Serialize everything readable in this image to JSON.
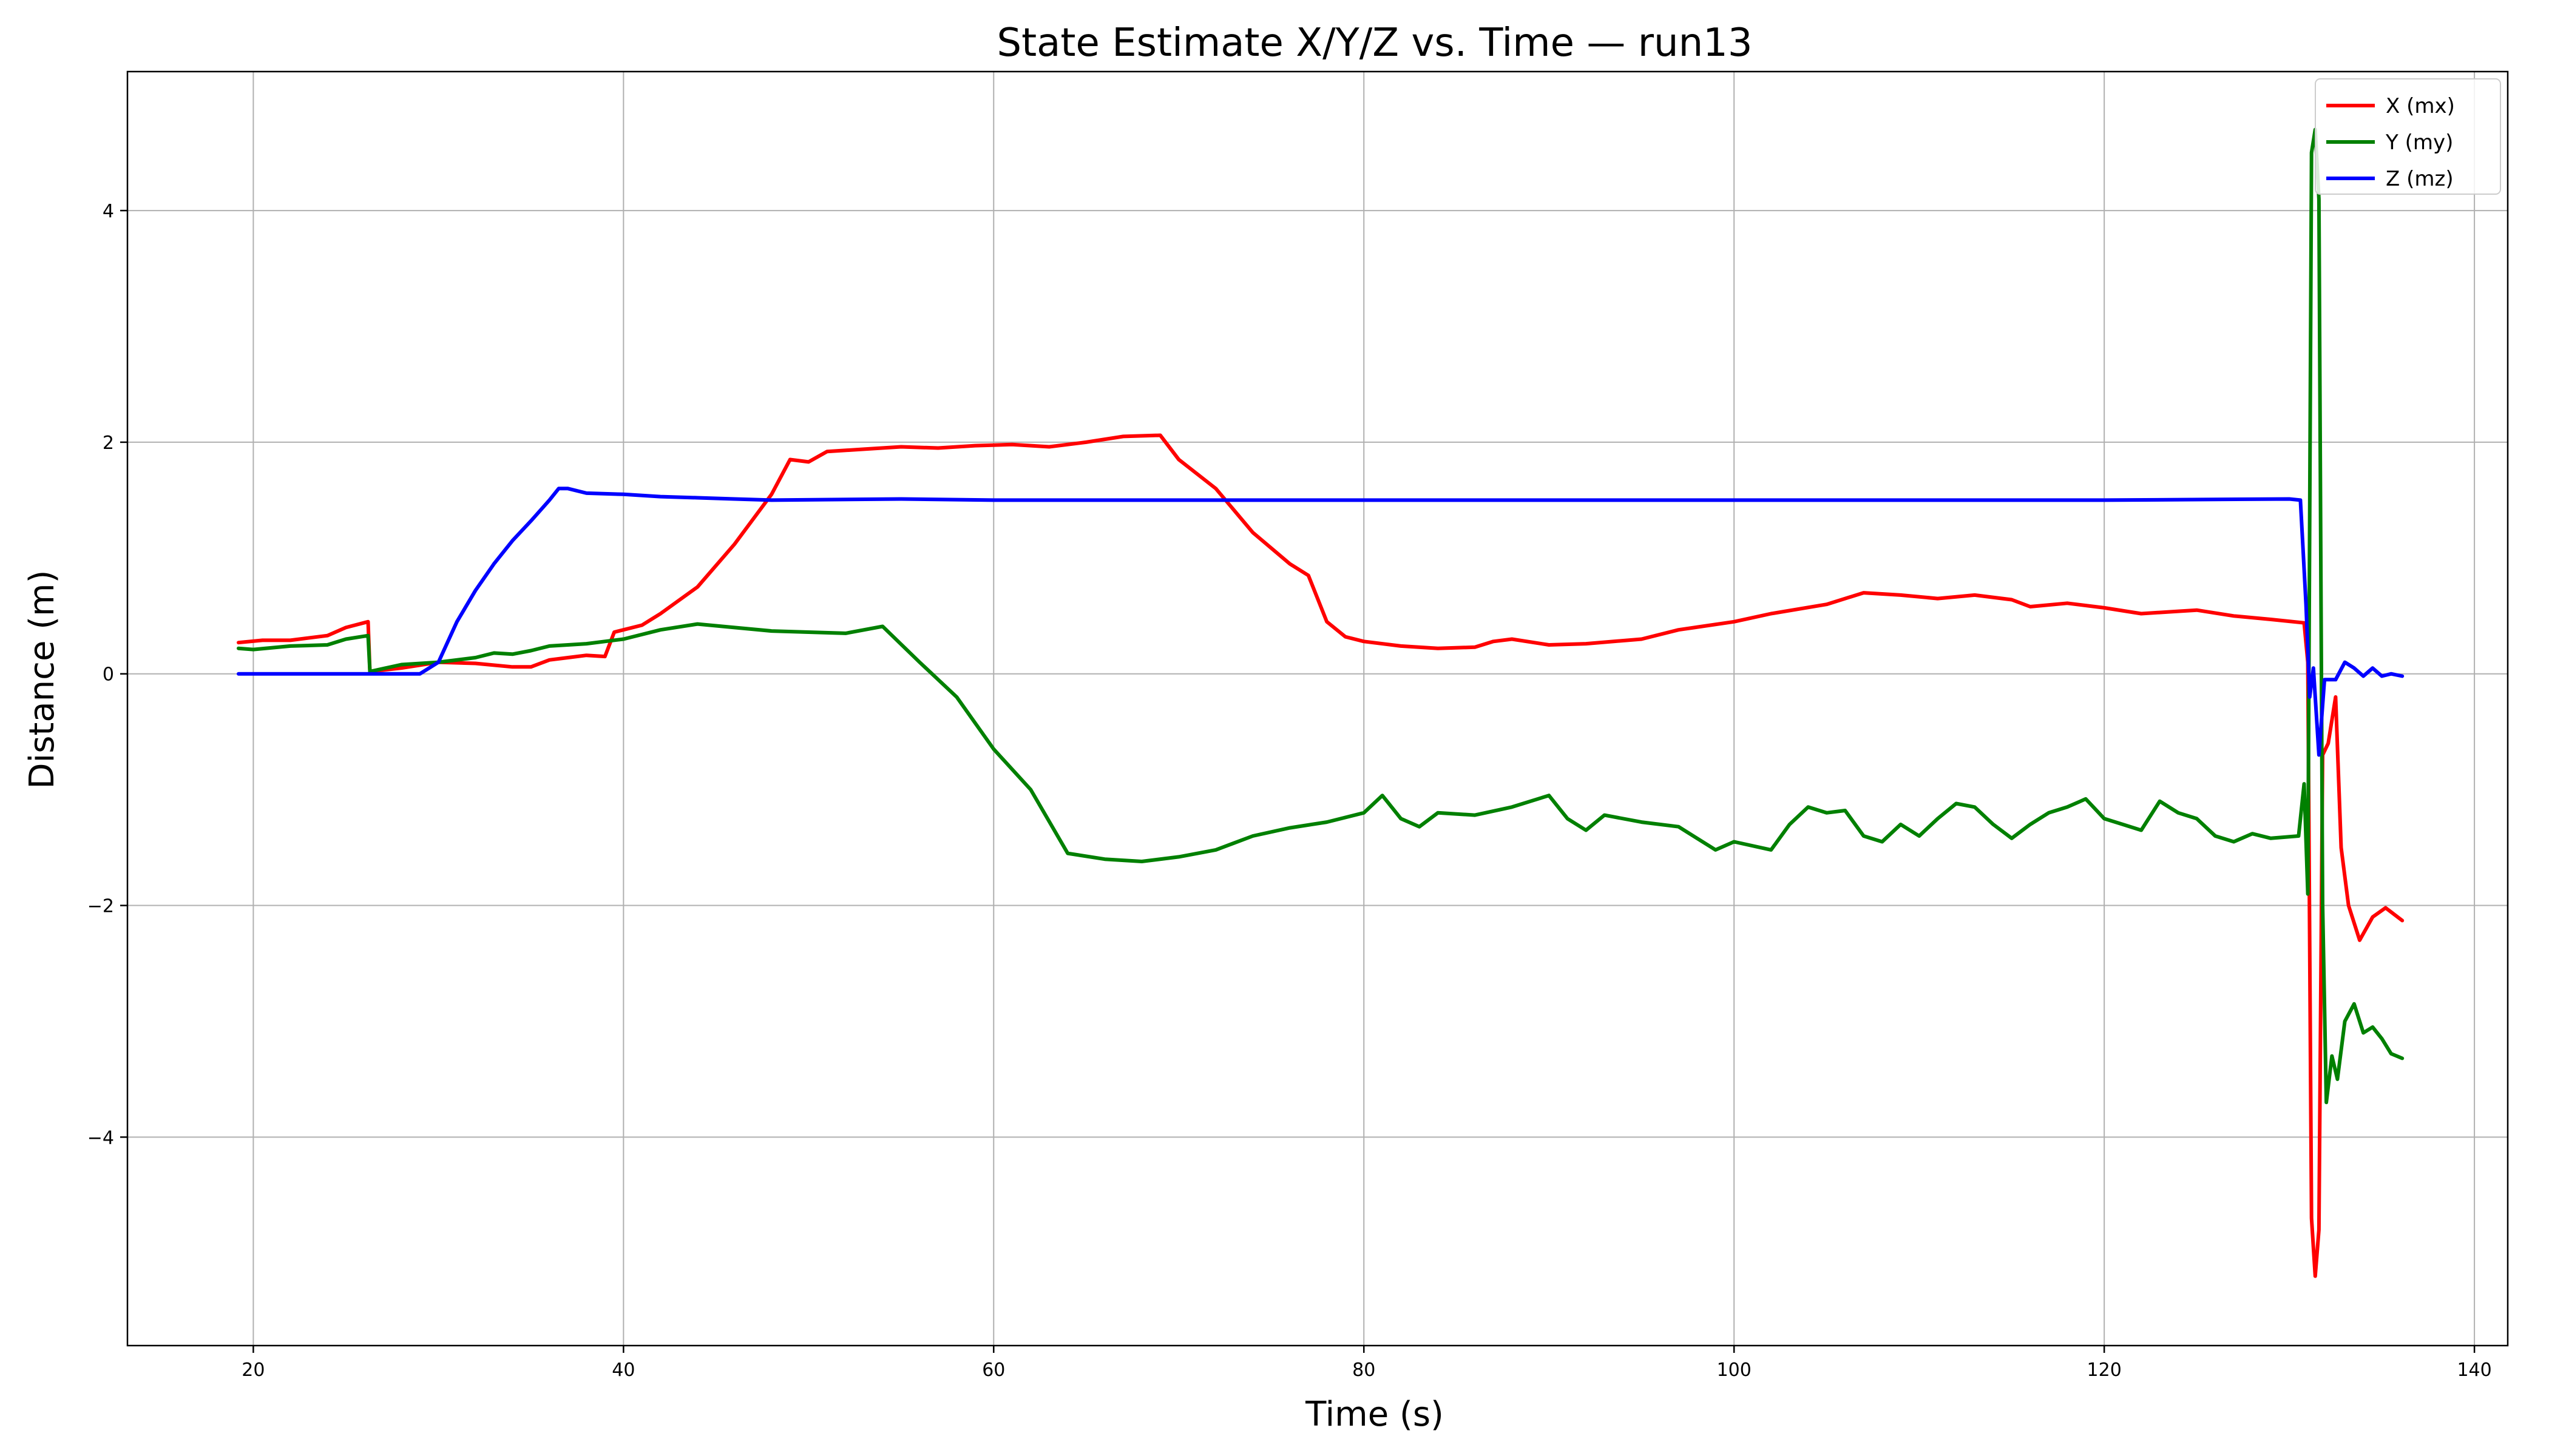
{
  "chart_data": {
    "type": "line",
    "title": "State Estimate X/Y/Z vs. Time — run13",
    "xlabel": "Time (s)",
    "ylabel": "Distance (m)",
    "xlim": [
      13.2,
      141.8
    ],
    "ylim": [
      -5.8,
      5.2
    ],
    "x_ticks": [
      20,
      40,
      60,
      80,
      100,
      120,
      140
    ],
    "y_ticks": [
      -4,
      -2,
      0,
      2,
      4
    ],
    "grid": true,
    "legend_position": "top-right",
    "series": [
      {
        "name": "X (mx)",
        "color": "#ff0000",
        "points": [
          [
            19.2,
            0.27
          ],
          [
            20.5,
            0.29
          ],
          [
            22,
            0.29
          ],
          [
            24,
            0.33
          ],
          [
            25,
            0.4
          ],
          [
            26.2,
            0.45
          ],
          [
            26.3,
            0.02
          ],
          [
            28,
            0.05
          ],
          [
            30,
            0.1
          ],
          [
            32,
            0.09
          ],
          [
            34,
            0.06
          ],
          [
            35,
            0.06
          ],
          [
            36,
            0.12
          ],
          [
            37,
            0.14
          ],
          [
            38,
            0.16
          ],
          [
            39,
            0.15
          ],
          [
            39.5,
            0.36
          ],
          [
            41,
            0.42
          ],
          [
            42,
            0.52
          ],
          [
            44,
            0.75
          ],
          [
            46,
            1.12
          ],
          [
            48,
            1.55
          ],
          [
            49,
            1.85
          ],
          [
            50,
            1.83
          ],
          [
            51,
            1.92
          ],
          [
            53,
            1.94
          ],
          [
            55,
            1.96
          ],
          [
            57,
            1.95
          ],
          [
            59,
            1.97
          ],
          [
            61,
            1.98
          ],
          [
            63,
            1.96
          ],
          [
            65,
            2.0
          ],
          [
            67,
            2.05
          ],
          [
            69,
            2.06
          ],
          [
            70,
            1.85
          ],
          [
            72,
            1.6
          ],
          [
            74,
            1.22
          ],
          [
            76,
            0.95
          ],
          [
            77,
            0.85
          ],
          [
            78,
            0.45
          ],
          [
            79,
            0.32
          ],
          [
            80,
            0.28
          ],
          [
            82,
            0.24
          ],
          [
            84,
            0.22
          ],
          [
            86,
            0.23
          ],
          [
            87,
            0.28
          ],
          [
            88,
            0.3
          ],
          [
            90,
            0.25
          ],
          [
            92,
            0.26
          ],
          [
            95,
            0.3
          ],
          [
            97,
            0.38
          ],
          [
            100,
            0.45
          ],
          [
            102,
            0.52
          ],
          [
            105,
            0.6
          ],
          [
            107,
            0.7
          ],
          [
            109,
            0.68
          ],
          [
            111,
            0.65
          ],
          [
            113,
            0.68
          ],
          [
            115,
            0.64
          ],
          [
            116,
            0.58
          ],
          [
            118,
            0.61
          ],
          [
            120,
            0.57
          ],
          [
            122,
            0.52
          ],
          [
            124,
            0.54
          ],
          [
            125,
            0.55
          ],
          [
            127,
            0.5
          ],
          [
            129,
            0.47
          ],
          [
            130.8,
            0.44
          ],
          [
            131,
            0.1
          ],
          [
            131.2,
            -4.7
          ],
          [
            131.4,
            -5.2
          ],
          [
            131.6,
            -4.8
          ],
          [
            131.8,
            -0.7
          ],
          [
            132.1,
            -0.6
          ],
          [
            132.5,
            -0.2
          ],
          [
            132.8,
            -1.5
          ],
          [
            133.2,
            -2.0
          ],
          [
            133.8,
            -2.3
          ],
          [
            134.5,
            -2.1
          ],
          [
            135.2,
            -2.02
          ],
          [
            136.1,
            -2.13
          ]
        ]
      },
      {
        "name": "Y (my)",
        "color": "#008000",
        "points": [
          [
            19.2,
            0.22
          ],
          [
            20,
            0.21
          ],
          [
            22,
            0.24
          ],
          [
            24,
            0.25
          ],
          [
            25,
            0.3
          ],
          [
            26.2,
            0.33
          ],
          [
            26.3,
            0.02
          ],
          [
            28,
            0.08
          ],
          [
            30,
            0.1
          ],
          [
            32,
            0.14
          ],
          [
            33,
            0.18
          ],
          [
            34,
            0.17
          ],
          [
            35,
            0.2
          ],
          [
            36,
            0.24
          ],
          [
            38,
            0.26
          ],
          [
            40,
            0.3
          ],
          [
            42,
            0.38
          ],
          [
            44,
            0.43
          ],
          [
            46,
            0.4
          ],
          [
            48,
            0.37
          ],
          [
            50,
            0.36
          ],
          [
            52,
            0.35
          ],
          [
            54,
            0.41
          ],
          [
            56,
            0.1
          ],
          [
            58,
            -0.2
          ],
          [
            60,
            -0.65
          ],
          [
            62,
            -1.0
          ],
          [
            64,
            -1.55
          ],
          [
            66,
            -1.6
          ],
          [
            68,
            -1.62
          ],
          [
            70,
            -1.58
          ],
          [
            72,
            -1.52
          ],
          [
            74,
            -1.4
          ],
          [
            76,
            -1.33
          ],
          [
            78,
            -1.28
          ],
          [
            80,
            -1.2
          ],
          [
            81,
            -1.05
          ],
          [
            82,
            -1.25
          ],
          [
            83,
            -1.32
          ],
          [
            84,
            -1.2
          ],
          [
            86,
            -1.22
          ],
          [
            88,
            -1.15
          ],
          [
            90,
            -1.05
          ],
          [
            91,
            -1.25
          ],
          [
            92,
            -1.35
          ],
          [
            93,
            -1.22
          ],
          [
            95,
            -1.28
          ],
          [
            97,
            -1.32
          ],
          [
            99,
            -1.52
          ],
          [
            100,
            -1.45
          ],
          [
            102,
            -1.52
          ],
          [
            103,
            -1.3
          ],
          [
            104,
            -1.15
          ],
          [
            105,
            -1.2
          ],
          [
            106,
            -1.18
          ],
          [
            107,
            -1.4
          ],
          [
            108,
            -1.45
          ],
          [
            109,
            -1.3
          ],
          [
            110,
            -1.4
          ],
          [
            111,
            -1.25
          ],
          [
            112,
            -1.12
          ],
          [
            113,
            -1.15
          ],
          [
            114,
            -1.3
          ],
          [
            115,
            -1.42
          ],
          [
            116,
            -1.3
          ],
          [
            117,
            -1.2
          ],
          [
            118,
            -1.15
          ],
          [
            119,
            -1.08
          ],
          [
            120,
            -1.25
          ],
          [
            121,
            -1.3
          ],
          [
            122,
            -1.35
          ],
          [
            123,
            -1.1
          ],
          [
            124,
            -1.2
          ],
          [
            125,
            -1.25
          ],
          [
            126,
            -1.4
          ],
          [
            127,
            -1.45
          ],
          [
            128,
            -1.38
          ],
          [
            129,
            -1.42
          ],
          [
            130.5,
            -1.4
          ],
          [
            130.8,
            -0.95
          ],
          [
            131,
            -1.9
          ],
          [
            131.2,
            4.5
          ],
          [
            131.4,
            4.7
          ],
          [
            131.6,
            4.1
          ],
          [
            131.8,
            -2.0
          ],
          [
            132,
            -3.7
          ],
          [
            132.3,
            -3.3
          ],
          [
            132.6,
            -3.5
          ],
          [
            133,
            -3.0
          ],
          [
            133.5,
            -2.85
          ],
          [
            134,
            -3.1
          ],
          [
            134.5,
            -3.05
          ],
          [
            135,
            -3.15
          ],
          [
            135.5,
            -3.28
          ],
          [
            136.1,
            -3.32
          ]
        ]
      },
      {
        "name": "Z (mz)",
        "color": "#0000ff",
        "points": [
          [
            19.2,
            0.0
          ],
          [
            22,
            0.0
          ],
          [
            25,
            0.0
          ],
          [
            27,
            0.0
          ],
          [
            28,
            0.0
          ],
          [
            29,
            0.0
          ],
          [
            30,
            0.1
          ],
          [
            31,
            0.45
          ],
          [
            32,
            0.72
          ],
          [
            33,
            0.95
          ],
          [
            34,
            1.15
          ],
          [
            35,
            1.32
          ],
          [
            36,
            1.5
          ],
          [
            36.5,
            1.6
          ],
          [
            37,
            1.6
          ],
          [
            38,
            1.56
          ],
          [
            40,
            1.55
          ],
          [
            42,
            1.53
          ],
          [
            44,
            1.52
          ],
          [
            46,
            1.51
          ],
          [
            48,
            1.5
          ],
          [
            55,
            1.51
          ],
          [
            60,
            1.5
          ],
          [
            70,
            1.5
          ],
          [
            80,
            1.5
          ],
          [
            90,
            1.5
          ],
          [
            100,
            1.5
          ],
          [
            110,
            1.5
          ],
          [
            120,
            1.5
          ],
          [
            130,
            1.51
          ],
          [
            130.6,
            1.5
          ],
          [
            130.9,
            0.6
          ],
          [
            131.1,
            -0.2
          ],
          [
            131.3,
            0.05
          ],
          [
            131.6,
            -0.7
          ],
          [
            131.9,
            -0.05
          ],
          [
            132.5,
            -0.05
          ],
          [
            133,
            0.1
          ],
          [
            133.5,
            0.05
          ],
          [
            134,
            -0.02
          ],
          [
            134.5,
            0.05
          ],
          [
            135,
            -0.02
          ],
          [
            135.5,
            0.0
          ],
          [
            136.1,
            -0.02
          ]
        ]
      }
    ]
  }
}
